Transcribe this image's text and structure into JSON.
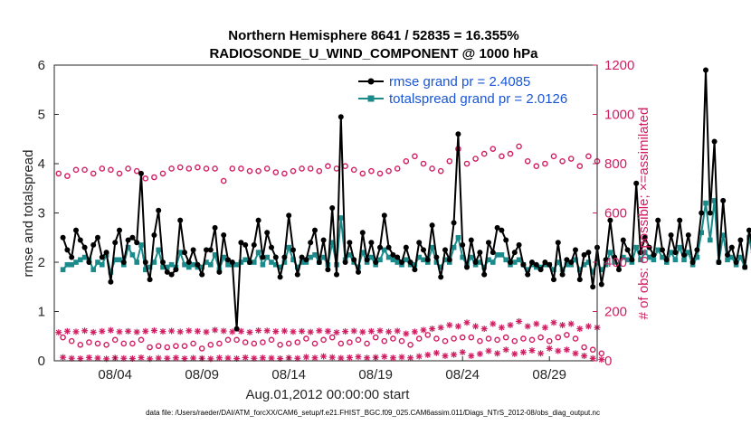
{
  "chart_data": {
    "type": "line",
    "title_line1": "Northern Hemisphere 8641 / 52835 = 16.355%",
    "title_line2": "RADIOSONDE_U_WIND_COMPONENT @ 1000 hPa",
    "ylabel_left": "rmse and totalspread",
    "ylabel_right": "# of obs: o=possible; ×=assimilated",
    "xlabel": "Aug.01,2012 00:00:00 start",
    "footnote": "data file: /Users/raeder/DAI/ATM_forcXX/CAM6_setup/f.e21.FHIST_BGC.f09_025.CAM6assim.011/Diags_NTrS_2012-08/obs_diag_output.nc",
    "x_range": [
      0.5,
      31.75
    ],
    "ylim_left": [
      0,
      6
    ],
    "ylim_right": [
      0,
      1200
    ],
    "x_ticks": [
      {
        "x": 4,
        "label": "08/04"
      },
      {
        "x": 9,
        "label": "08/09"
      },
      {
        "x": 14,
        "label": "08/14"
      },
      {
        "x": 19,
        "label": "08/19"
      },
      {
        "x": 24,
        "label": "08/24"
      },
      {
        "x": 29,
        "label": "08/29"
      }
    ],
    "y_ticks_left": [
      "0",
      "1",
      "2",
      "3",
      "4",
      "5",
      "6"
    ],
    "y_ticks_right": [
      "0",
      "200",
      "400",
      "600",
      "800",
      "1000",
      "1200"
    ],
    "colors": {
      "rmse": "#000000",
      "spread": "#1b8a8a",
      "obs": "#d11d62",
      "legend_text": "#1a56d6"
    },
    "series": [
      {
        "name": "rmse",
        "legend": "rmse grand pr = 2.4085",
        "values": [
          2.5,
          2.25,
          2.1,
          2.65,
          2.45,
          2.3,
          2.0,
          2.35,
          2.5,
          2.1,
          2.2,
          1.6,
          2.4,
          2.65,
          2.0,
          2.45,
          2.5,
          2.4,
          3.8,
          2.0,
          1.65,
          2.55,
          3.05,
          2.0,
          1.8,
          1.75,
          1.85,
          2.85,
          2.2,
          2.0,
          2.25,
          1.95,
          1.75,
          2.25,
          2.25,
          2.7,
          1.8,
          2.55,
          2.05,
          2.0,
          0.65,
          2.4,
          2.35,
          2.0,
          2.35,
          2.85,
          2.1,
          2.6,
          2.3,
          2.1,
          1.7,
          2.1,
          2.95,
          2.25,
          1.75,
          2.1,
          2.05,
          2.4,
          2.65,
          2.0,
          2.45,
          1.85,
          3.1,
          1.75,
          4.95,
          2.0,
          2.4,
          2.05,
          1.8,
          2.6,
          2.05,
          2.4,
          2.0,
          2.3,
          2.95,
          2.3,
          2.15,
          2.1,
          2.0,
          2.3,
          2.0,
          1.85,
          2.4,
          2.25,
          2.05,
          2.75,
          2.1,
          1.7,
          2.25,
          2.05,
          2.8,
          4.6,
          2.35,
          1.9,
          2.45,
          2.0,
          2.2,
          1.75,
          2.4,
          2.2,
          2.7,
          2.65,
          2.45,
          2.0,
          2.2,
          2.35,
          1.95,
          1.75,
          2.0,
          1.95,
          1.85,
          2.0,
          1.95,
          1.65,
          2.4,
          1.75,
          2.05,
          2.0,
          2.25,
          1.65,
          2.15,
          2.2,
          1.5,
          2.3,
          1.55,
          2.05,
          2.85,
          2.1,
          1.85,
          2.45,
          2.25,
          2.05,
          3.6,
          2.2,
          2.5,
          2.3,
          2.15,
          2.85,
          2.25,
          2.05,
          2.55,
          2.2,
          2.85,
          2.15,
          2.55,
          2.0,
          2.25,
          3.0,
          5.9,
          3.0,
          4.45,
          2.0,
          3.25,
          2.15,
          2.3,
          2.0,
          2.45,
          1.9,
          2.65,
          2.2,
          2.0,
          1.9,
          2.0,
          1.85,
          1.95,
          2.05,
          3.0
        ]
      },
      {
        "name": "totalspread",
        "legend": "totalspread grand pr = 2.0126",
        "values": [
          1.85,
          1.95,
          1.95,
          2.0,
          2.05,
          2.1,
          2.05,
          1.85,
          2.0,
          1.95,
          2.15,
          1.8,
          2.05,
          2.05,
          1.95,
          2.3,
          2.15,
          2.0,
          2.35,
          1.85,
          1.9,
          2.0,
          2.25,
          1.9,
          1.9,
          1.95,
          1.9,
          2.2,
          1.95,
          1.9,
          1.95,
          1.9,
          1.9,
          2.0,
          1.95,
          2.15,
          1.85,
          2.1,
          1.95,
          1.95,
          1.95,
          2.0,
          2.05,
          2.0,
          2.0,
          2.2,
          1.95,
          2.1,
          2.0,
          1.95,
          1.9,
          2.0,
          2.3,
          2.05,
          1.9,
          2.0,
          2.0,
          2.1,
          2.15,
          2.0,
          2.1,
          1.95,
          2.4,
          1.95,
          2.9,
          2.05,
          2.15,
          2.0,
          1.9,
          2.2,
          2.0,
          2.1,
          1.95,
          2.05,
          2.25,
          2.1,
          2.05,
          2.0,
          1.95,
          2.05,
          1.95,
          1.95,
          2.1,
          2.05,
          2.0,
          2.3,
          2.0,
          1.9,
          2.05,
          2.0,
          2.3,
          2.5,
          2.1,
          1.95,
          2.1,
          1.95,
          2.0,
          1.9,
          2.05,
          2.0,
          2.15,
          2.15,
          2.05,
          1.95,
          2.0,
          2.05,
          1.95,
          1.85,
          1.95,
          1.9,
          1.9,
          1.95,
          1.95,
          1.85,
          2.0,
          1.85,
          1.95,
          1.95,
          2.05,
          1.85,
          1.95,
          2.0,
          1.8,
          2.0,
          1.85,
          1.95,
          2.2,
          2.0,
          1.95,
          2.1,
          2.05,
          2.0,
          2.3,
          2.05,
          2.2,
          2.1,
          2.05,
          2.25,
          2.1,
          2.0,
          2.2,
          2.05,
          2.3,
          2.05,
          2.2,
          1.95,
          2.1,
          2.6,
          3.2,
          2.45,
          3.25,
          2.0,
          2.55,
          2.05,
          2.1,
          1.95,
          2.1,
          1.9,
          2.5,
          2.05,
          1.9,
          1.8,
          1.85,
          1.8,
          1.9,
          1.95,
          2.0
        ]
      },
      {
        "name": "possible_00Z_12Z",
        "marker": "o",
        "values": [
          760,
          750,
          775,
          775,
          760,
          780,
          775,
          760,
          780,
          770,
          740,
          745,
          760,
          780,
          785,
          780,
          785,
          780,
          780,
          730,
          780,
          780,
          770,
          770,
          780,
          765,
          760,
          770,
          780,
          780,
          770,
          790,
          780,
          790,
          775,
          760,
          770,
          760,
          770,
          780,
          810,
          830,
          800,
          780,
          770,
          810,
          860,
          800,
          820,
          840,
          860,
          830,
          840,
          870,
          810,
          790,
          800,
          830,
          810,
          820,
          790,
          830,
          810
        ]
      },
      {
        "name": "possible_06Z_18Z",
        "marker": "o",
        "values": [
          95,
          80,
          65,
          75,
          70,
          65,
          85,
          70,
          70,
          85,
          55,
          60,
          55,
          60,
          60,
          70,
          50,
          65,
          70,
          85,
          85,
          75,
          70,
          75,
          85,
          65,
          70,
          75,
          90,
          70,
          85,
          95,
          70,
          75,
          85,
          70,
          95,
          80,
          90,
          80,
          65,
          90,
          105,
          90,
          80,
          90,
          95,
          95,
          80,
          90,
          85,
          95,
          80,
          90,
          85,
          95,
          80,
          95,
          105,
          90,
          55,
          45,
          30
        ]
      },
      {
        "name": "assimilated_00Z_12Z",
        "marker": "*",
        "values": [
          115,
          120,
          118,
          122,
          116,
          120,
          124,
          118,
          120,
          117,
          120,
          123,
          119,
          121,
          118,
          122,
          120,
          117,
          125,
          121,
          118,
          120,
          116,
          123,
          122,
          119,
          121,
          118,
          120,
          117,
          122,
          120,
          115,
          119,
          121,
          117,
          120,
          122,
          118,
          121,
          110,
          118,
          125,
          130,
          135,
          145,
          140,
          155,
          140,
          130,
          150,
          135,
          145,
          160,
          140,
          150,
          135,
          155,
          145,
          150,
          130,
          140,
          135
        ]
      },
      {
        "name": "assimilated_06Z_18Z",
        "marker": "*",
        "values": [
          14,
          10,
          9,
          13,
          11,
          8,
          12,
          10,
          9,
          13,
          8,
          11,
          10,
          12,
          9,
          11,
          10,
          8,
          12,
          11,
          9,
          13,
          10,
          12,
          11,
          9,
          12,
          10,
          15,
          12,
          18,
          14,
          11,
          13,
          16,
          12,
          14,
          17,
          12,
          15,
          12,
          18,
          24,
          32,
          20,
          25,
          35,
          20,
          28,
          40,
          30,
          45,
          28,
          35,
          42,
          30,
          50,
          40,
          45,
          30,
          20,
          10,
          5
        ]
      }
    ]
  }
}
